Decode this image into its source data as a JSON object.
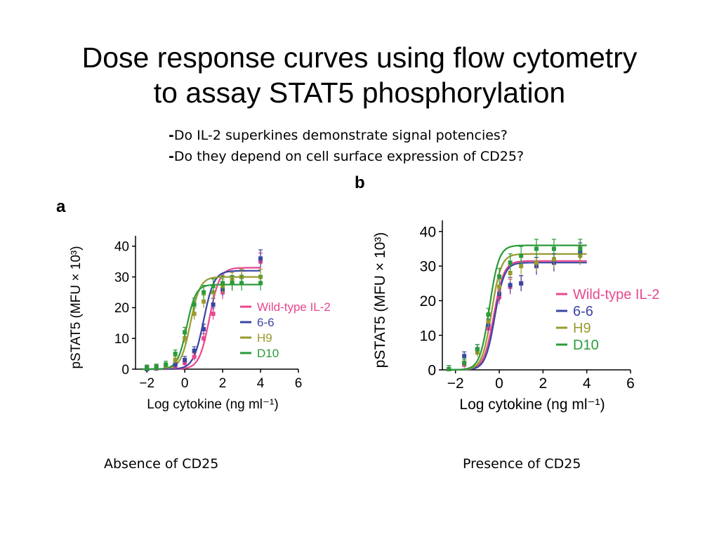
{
  "slide": {
    "title": "Dose response curves using flow cytometry to assay STAT5 phosphorylation",
    "bullets": [
      "Do IL-2 superkines demonstrate signal potencies?",
      "Do they depend on cell surface expression of CD25?"
    ],
    "captions": [
      "Absence of CD25",
      "Presence of CD25"
    ]
  },
  "chart_data": [
    {
      "panel_label": "a",
      "type": "scatter",
      "xlabel": "Log cytokine (ng ml⁻¹)",
      "ylabel": "pSTAT5 (MFU × 10³)",
      "xlim": [
        -2.6,
        6
      ],
      "ylim": [
        0,
        42
      ],
      "xticks": [
        -2,
        0,
        2,
        4,
        6
      ],
      "yticks": [
        0,
        10,
        20,
        30,
        40
      ],
      "xtick_labels": [
        "−2",
        "0",
        "2",
        "4",
        "6"
      ],
      "ytick_labels": [
        "0",
        "10",
        "20",
        "30",
        "40"
      ],
      "legend_position": "right",
      "series": [
        {
          "name": "Wild-type IL-2",
          "color": "#e8478f",
          "x": [
            -2,
            -1.5,
            -1,
            -0.5,
            0,
            0.5,
            1,
            1.5,
            2,
            2.5,
            3,
            4
          ],
          "y": [
            0,
            0.2,
            0.5,
            1,
            2,
            4,
            10,
            18,
            25,
            28,
            30,
            35
          ],
          "fit": {
            "bottom": 0,
            "top": 33,
            "ec50": 1.3,
            "hill": 1.6
          }
        },
        {
          "name": "6-6",
          "color": "#3a45a0",
          "x": [
            -2,
            -1.5,
            -1,
            -0.5,
            0,
            0.5,
            1,
            1.5,
            2,
            2.5,
            3,
            4
          ],
          "y": [
            0,
            0.3,
            0.6,
            1.5,
            3,
            6,
            13,
            21,
            26,
            28,
            30,
            36
          ],
          "fit": {
            "bottom": 0,
            "top": 32,
            "ec50": 1.0,
            "hill": 1.6
          }
        },
        {
          "name": "H9",
          "color": "#9a9a2e",
          "x": [
            -2,
            -1.5,
            -1,
            -0.5,
            0,
            0.5,
            1,
            1.5,
            2,
            2.5,
            3,
            4
          ],
          "y": [
            0.3,
            0.5,
            1,
            3,
            10,
            18,
            22,
            25,
            27,
            29,
            30,
            30
          ],
          "fit": {
            "bottom": 0,
            "top": 30,
            "ec50": 0.3,
            "hill": 1.7
          }
        },
        {
          "name": "D10",
          "color": "#2a9a3a",
          "x": [
            -2,
            -1.5,
            -1,
            -0.5,
            0,
            0.5,
            1,
            1.5,
            2,
            2.5,
            3,
            4
          ],
          "y": [
            0.3,
            0.6,
            1.5,
            5,
            12,
            21,
            25,
            27,
            28,
            28,
            28,
            28
          ],
          "fit": {
            "bottom": 0,
            "top": 27.5,
            "ec50": 0.1,
            "hill": 1.8
          }
        }
      ]
    },
    {
      "panel_label": "b",
      "type": "scatter",
      "xlabel": "Log cytokine (ng ml⁻¹)",
      "ylabel": "pSTAT5 (MFU × 10³)",
      "xlim": [
        -2.6,
        6
      ],
      "ylim": [
        0,
        42
      ],
      "xticks": [
        -2,
        0,
        2,
        4,
        6
      ],
      "yticks": [
        0,
        10,
        20,
        30,
        40
      ],
      "xtick_labels": [
        "−2",
        "0",
        "2",
        "4",
        "6"
      ],
      "ytick_labels": [
        "0",
        "10",
        "20",
        "30",
        "40"
      ],
      "legend_position": "right",
      "series": [
        {
          "name": "Wild-type IL-2",
          "color": "#e8478f",
          "x": [
            -2.3,
            -1.6,
            -1,
            -0.5,
            0,
            0.5,
            1,
            1.7,
            2.5,
            3.7
          ],
          "y": [
            0.2,
            1.5,
            6,
            12,
            21,
            24,
            25,
            30,
            31,
            33
          ],
          "fit": {
            "bottom": 0,
            "top": 31.5,
            "ec50": -0.25,
            "hill": 1.9
          }
        },
        {
          "name": "6-6",
          "color": "#3a45a0",
          "x": [
            -2.3,
            -1.6,
            -1,
            -0.5,
            0,
            0.5,
            1,
            1.7,
            2.5,
            3.7
          ],
          "y": [
            0.2,
            4,
            6,
            13,
            22,
            24.5,
            25,
            30,
            31,
            34
          ],
          "fit": {
            "bottom": 0,
            "top": 31,
            "ec50": -0.2,
            "hill": 2.0
          }
        },
        {
          "name": "H9",
          "color": "#9a9a2e",
          "x": [
            -2.3,
            -1.6,
            -1,
            -0.5,
            0,
            0.5,
            1,
            1.7,
            2.5,
            3.7
          ],
          "y": [
            0.2,
            2,
            5,
            14,
            24,
            28,
            30,
            31,
            32,
            33
          ],
          "fit": {
            "bottom": 0,
            "top": 33.5,
            "ec50": -0.35,
            "hill": 2.0
          }
        },
        {
          "name": "D10",
          "color": "#2a9a3a",
          "x": [
            -2.3,
            -1.6,
            -1,
            -0.5,
            0,
            0.5,
            1,
            1.7,
            2.5,
            3.7
          ],
          "y": [
            0.2,
            2,
            6,
            16,
            27,
            31,
            33,
            35,
            35,
            35
          ],
          "fit": {
            "bottom": 0,
            "top": 36,
            "ec50": -0.45,
            "hill": 2.0
          }
        }
      ]
    }
  ]
}
